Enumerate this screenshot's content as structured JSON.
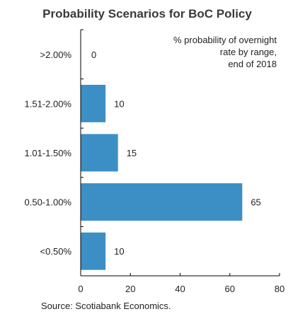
{
  "chart_data": {
    "type": "bar",
    "orientation": "horizontal",
    "title": "Probability Scenarios for BoC Policy",
    "annotation": [
      "% probability of overnight",
      "rate by range,",
      "end of 2018"
    ],
    "categories": [
      ">2.00%",
      "1.51-2.00%",
      "1.01-1.50%",
      "0.50-1.00%",
      "<0.50%"
    ],
    "values": [
      0,
      10,
      15,
      65,
      10
    ],
    "value_labels": [
      "0",
      "10",
      "15",
      "65",
      "10"
    ],
    "xlim": [
      0,
      80
    ],
    "xticks": [
      "0",
      "20",
      "40",
      "60",
      "80"
    ],
    "xlabel": "",
    "ylabel": "",
    "source": "Source: Scotiabank Economics.",
    "grid": false,
    "bar_color": "#3b8fc4"
  }
}
